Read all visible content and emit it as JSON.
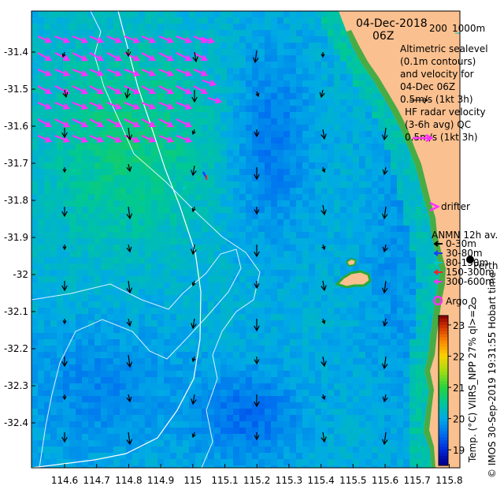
{
  "map": {
    "date": "04-Dec-2018",
    "time": "06Z",
    "scale_label_200": "200",
    "scale_label_1000": "1000m",
    "altimetry_lines": [
      "Altimetric sealevel",
      "(0.1m contours)",
      "and velocity for",
      "04-Dec 06Z"
    ],
    "altimetry_scale": "0.5m/s (1kt 3h)",
    "hf_radar_lines": [
      "HF radar velocity",
      "(3-6h avg) QC"
    ],
    "hf_radar_scale": "0.5m/s (1kt 3h)",
    "drifter_label": "drifter",
    "anmn_title": "ANMN 12h av.",
    "anmn_depths": [
      {
        "label": "0-30m",
        "color": "#000000"
      },
      {
        "label": "30-80m",
        "color": "#1a3cff"
      },
      {
        "label": "80-150m",
        "color": "#00c8c8"
      },
      {
        "label": "150-300m",
        "color": "#ff2020"
      },
      {
        "label": "300-600m",
        "color": "#ff30ff"
      }
    ],
    "city_label": "Perth",
    "argo_label": "Argo 0",
    "side_label": "Temp. (°C) VIIRS_NPP 27% ql>=2",
    "credit_label": "© IMOS 30-Sep-2019 19:31:55 Hobart time",
    "lat_ticks": [
      "-31.4",
      "-31.5",
      "-31.6",
      "-31.7",
      "-31.8",
      "-31.9",
      "-32",
      "-32.1",
      "-32.2",
      "-32.3",
      "-32.4"
    ],
    "lon_ticks": [
      "114.6",
      "114.7",
      "114.8",
      "114.9",
      "115",
      "115.1",
      "115.2",
      "115.3",
      "115.4",
      "115.5",
      "115.6",
      "115.7",
      "115.8"
    ],
    "colorbar_ticks": [
      "23",
      "22",
      "21",
      "20",
      "19"
    ],
    "colorbar_range": [
      18.5,
      23.3
    ],
    "colors": {
      "land": "#fbc08f",
      "hf_arrow": "#ff30ff",
      "contour": "#d8f4ff",
      "coast_vegetation": "#27a837"
    }
  }
}
